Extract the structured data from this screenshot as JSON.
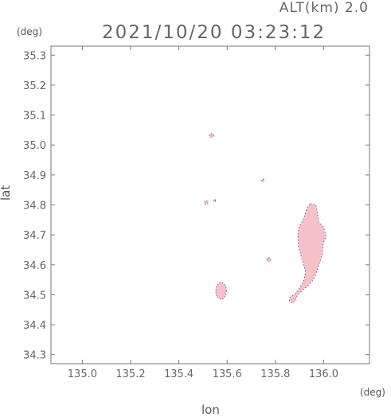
{
  "header": {
    "altitude": "ALT(km) 2.0",
    "timestamp": "2021/10/20 03:23:12"
  },
  "chart_data": {
    "type": "scatter",
    "title": "2021/10/20 03:23:12",
    "xlabel": "lon",
    "ylabel": "lat",
    "x_unit": "(deg)",
    "y_unit": "(deg)",
    "xlim": [
      134.87,
      136.19
    ],
    "ylim": [
      34.27,
      35.33
    ],
    "xticks": [
      "135.0",
      "135.2",
      "135.4",
      "135.6",
      "135.8",
      "136.0"
    ],
    "yticks": [
      "34.3",
      "34.4",
      "34.5",
      "34.6",
      "34.7",
      "34.8",
      "34.9",
      "35.0",
      "35.1",
      "35.2",
      "35.3"
    ],
    "grid": false,
    "colors": {
      "fill": "#f6c2c8",
      "edge": "#6a5acd"
    },
    "regions": [
      {
        "name": "speck-north",
        "shape": "ellipse",
        "cx": 135.535,
        "cy": 35.032,
        "rx": 0.009,
        "ry": 0.006
      },
      {
        "name": "speck-west",
        "shape": "ellipse",
        "cx": 135.513,
        "cy": 34.808,
        "rx": 0.007,
        "ry": 0.006
      },
      {
        "name": "speck-west-2",
        "shape": "ellipse",
        "cx": 135.548,
        "cy": 34.815,
        "rx": 0.004,
        "ry": 0.004
      },
      {
        "name": "speck-mid",
        "shape": "ellipse",
        "cx": 135.748,
        "cy": 34.882,
        "rx": 0.005,
        "ry": 0.004
      },
      {
        "name": "speck-east",
        "shape": "ellipse",
        "cx": 135.772,
        "cy": 34.618,
        "rx": 0.008,
        "ry": 0.006
      },
      {
        "name": "cell-south",
        "shape": "ellipse",
        "cx": 135.575,
        "cy": 34.513,
        "rx": 0.022,
        "ry": 0.028
      },
      {
        "name": "cell-main",
        "shape": "polygon",
        "points": [
          [
            135.945,
            34.805
          ],
          [
            135.968,
            34.8
          ],
          [
            135.975,
            34.775
          ],
          [
            135.978,
            34.745
          ],
          [
            136.0,
            34.725
          ],
          [
            136.01,
            34.695
          ],
          [
            135.998,
            34.67
          ],
          [
            135.995,
            34.635
          ],
          [
            135.98,
            34.6
          ],
          [
            135.968,
            34.57
          ],
          [
            135.955,
            34.548
          ],
          [
            135.935,
            34.53
          ],
          [
            135.912,
            34.515
          ],
          [
            135.89,
            34.498
          ],
          [
            135.88,
            34.478
          ],
          [
            135.87,
            34.472
          ],
          [
            135.858,
            34.48
          ],
          [
            135.86,
            34.492
          ],
          [
            135.878,
            34.5
          ],
          [
            135.898,
            34.52
          ],
          [
            135.918,
            34.548
          ],
          [
            135.925,
            34.578
          ],
          [
            135.915,
            34.605
          ],
          [
            135.905,
            34.635
          ],
          [
            135.895,
            34.665
          ],
          [
            135.893,
            34.7
          ],
          [
            135.898,
            34.728
          ],
          [
            135.912,
            34.745
          ],
          [
            135.922,
            34.765
          ],
          [
            135.93,
            34.79
          ]
        ]
      }
    ]
  }
}
